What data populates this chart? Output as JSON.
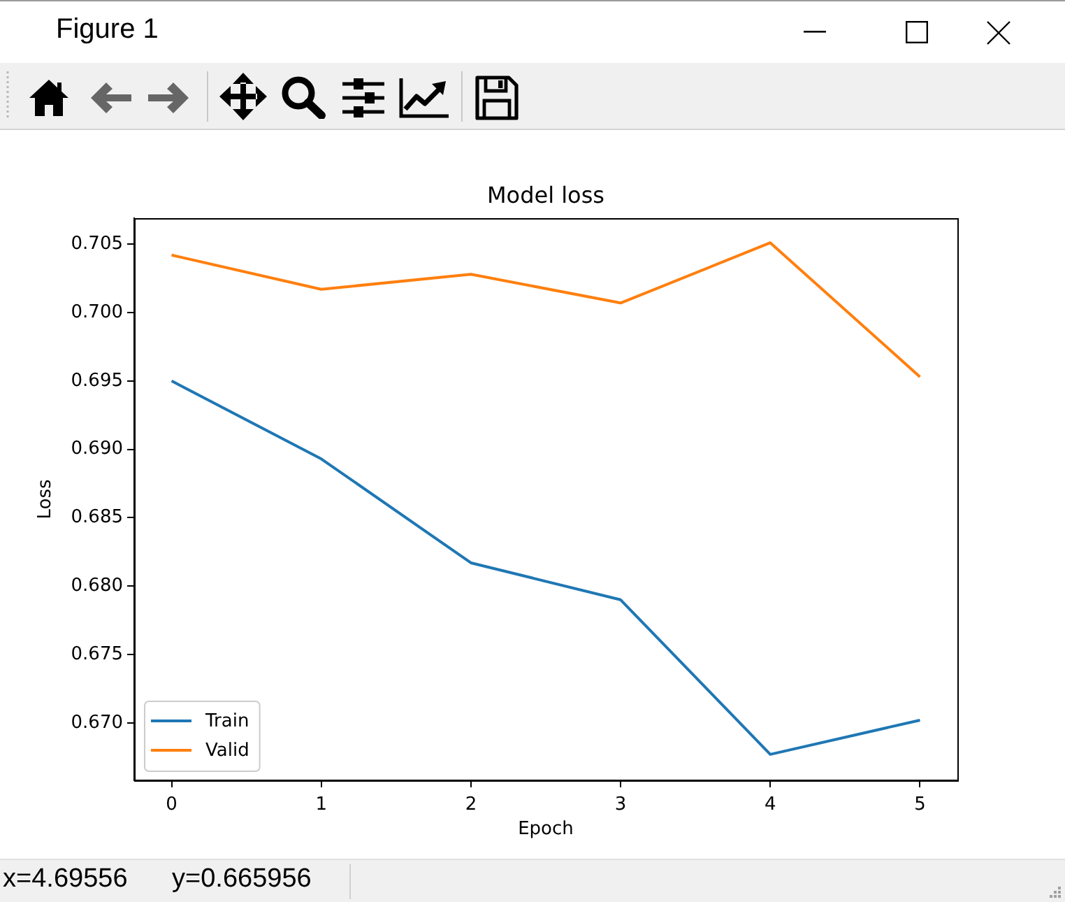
{
  "chart_data": {
    "type": "line",
    "title": "Model loss",
    "xlabel": "Epoch",
    "ylabel": "Loss",
    "x": [
      0,
      1,
      2,
      3,
      4,
      5
    ],
    "series": [
      {
        "name": "Train",
        "color": "#1f77b4",
        "values": [
          0.695,
          0.6893,
          0.6817,
          0.679,
          0.6677,
          0.6702
        ]
      },
      {
        "name": "Valid",
        "color": "#ff7f0e",
        "values": [
          0.7042,
          0.7017,
          0.7028,
          0.7007,
          0.7051,
          0.6953
        ]
      }
    ],
    "xlim": [
      -0.25,
      5.25
    ],
    "xticks": [
      0,
      1,
      2,
      3,
      4,
      5
    ],
    "ylim": [
      0.6658,
      0.7069
    ],
    "yticks": [
      {
        "value": 0.67,
        "label": "0.670"
      },
      {
        "value": 0.675,
        "label": "0.675"
      },
      {
        "value": 0.68,
        "label": "0.680"
      },
      {
        "value": 0.685,
        "label": "0.685"
      },
      {
        "value": 0.69,
        "label": "0.690"
      },
      {
        "value": 0.695,
        "label": "0.695"
      },
      {
        "value": 0.7,
        "label": "0.700"
      },
      {
        "value": 0.705,
        "label": "0.705"
      }
    ],
    "grid": false,
    "legend": "bottom left",
    "marker": "none",
    "line_style": "solid",
    "annotations": [
      "Figure 1",
      "x=4.69556",
      "y=0.665956"
    ]
  }
}
